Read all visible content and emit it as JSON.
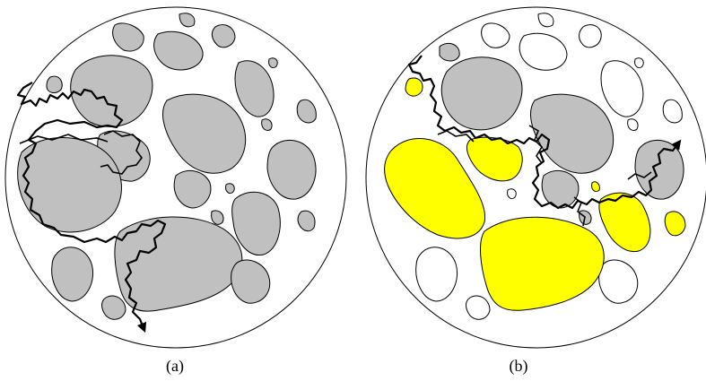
{
  "panels": [
    {
      "id": "a",
      "caption": "(a)"
    },
    {
      "id": "b",
      "caption": "(b)"
    }
  ],
  "colors": {
    "background": "#ffffff",
    "outline": "#000000",
    "particle_gray": "#c0c0c0",
    "particle_yellow": "#ffff00",
    "particle_empty": "#ffffff",
    "crack_path": "#000000"
  },
  "legend": []
}
